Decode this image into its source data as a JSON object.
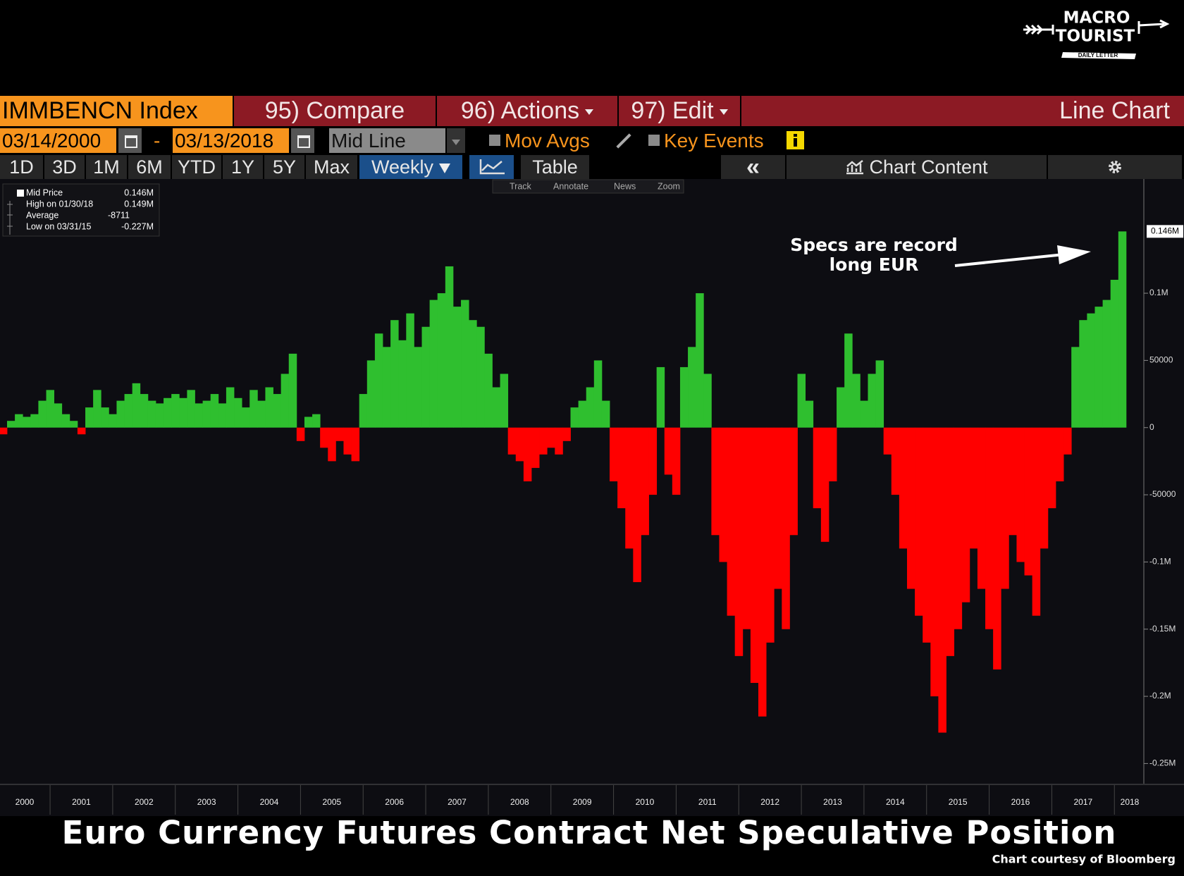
{
  "logo": [
    "MACRO",
    "TOURIST",
    "DAILY LETTER"
  ],
  "toolbar": {
    "security": "IMMBENCN Index",
    "compare": "95) Compare",
    "actions": "96) Actions",
    "edit": "97) Edit",
    "chart_type": "Line Chart",
    "start_date": "03/14/2000",
    "date_sep": "-",
    "end_date": "03/13/2018",
    "field": "Mid Line",
    "mov_avgs": "Mov Avgs",
    "key_events": "Key Events",
    "periods": [
      "1D",
      "3D",
      "1M",
      "6M",
      "YTD",
      "1Y",
      "5Y",
      "Max"
    ],
    "frequency": "Weekly",
    "table": "Table",
    "collapse": "«",
    "chart_content": "Chart Content",
    "tools": [
      "Track",
      "Annotate",
      "News",
      "Zoom"
    ]
  },
  "chart_data": {
    "type": "bar",
    "title": "Euro Currency Futures Contract Net Speculative Position",
    "source": "Chart courtesy of Bloomberg",
    "annotation": [
      "Specs are record",
      "long EUR"
    ],
    "legend": [
      [
        "Mid Price",
        "0.146M"
      ],
      [
        "High on 01/30/18",
        "0.149M"
      ],
      [
        "Average",
        "-8711"
      ],
      [
        "Low on 03/31/15",
        "-0.227M"
      ]
    ],
    "last_label": "0.146M",
    "positive_color": "#2fbf2f",
    "negative_color": "#ff0000",
    "xlim": [
      2000.2,
      2018.47
    ],
    "xticks": [
      2000,
      2001,
      2002,
      2003,
      2004,
      2005,
      2006,
      2007,
      2008,
      2009,
      2010,
      2011,
      2012,
      2013,
      2014,
      2015,
      2016,
      2017,
      2018
    ],
    "ylim": [
      -265000,
      185000
    ],
    "yticks": [
      {
        "value": -250000,
        "label": "-0.25M"
      },
      {
        "value": -200000,
        "label": "-0.2M"
      },
      {
        "value": -150000,
        "label": "-0.15M"
      },
      {
        "value": -100000,
        "label": "-0.1M"
      },
      -50000,
      0,
      50000,
      {
        "value": 100000,
        "label": "0.1M"
      }
    ],
    "x": [
      2000.25,
      2000.375,
      2000.5,
      2000.625,
      2000.75,
      2000.875,
      2001,
      2001.125,
      2001.25,
      2001.375,
      2001.5,
      2001.625,
      2001.75,
      2001.875,
      2002,
      2002.125,
      2002.25,
      2002.375,
      2002.5,
      2002.625,
      2002.75,
      2002.875,
      2003,
      2003.125,
      2003.25,
      2003.375,
      2003.5,
      2003.625,
      2003.75,
      2003.875,
      2004,
      2004.125,
      2004.25,
      2004.375,
      2004.5,
      2004.625,
      2004.75,
      2004.875,
      2005,
      2005.125,
      2005.25,
      2005.375,
      2005.5,
      2005.625,
      2005.75,
      2005.875,
      2006,
      2006.125,
      2006.25,
      2006.375,
      2006.5,
      2006.625,
      2006.75,
      2006.875,
      2007,
      2007.125,
      2007.25,
      2007.375,
      2007.5,
      2007.625,
      2007.75,
      2007.875,
      2008,
      2008.125,
      2008.25,
      2008.375,
      2008.5,
      2008.625,
      2008.75,
      2008.875,
      2009,
      2009.125,
      2009.25,
      2009.375,
      2009.5,
      2009.625,
      2009.75,
      2009.875,
      2010,
      2010.125,
      2010.25,
      2010.375,
      2010.5,
      2010.625,
      2010.75,
      2010.875,
      2011,
      2011.125,
      2011.25,
      2011.375,
      2011.5,
      2011.625,
      2011.75,
      2011.875,
      2012,
      2012.125,
      2012.25,
      2012.375,
      2012.5,
      2012.625,
      2012.75,
      2012.875,
      2013,
      2013.125,
      2013.25,
      2013.375,
      2013.5,
      2013.625,
      2013.75,
      2013.875,
      2014,
      2014.125,
      2014.25,
      2014.375,
      2014.5,
      2014.625,
      2014.75,
      2014.875,
      2015,
      2015.125,
      2015.25,
      2015.375,
      2015.5,
      2015.625,
      2015.75,
      2015.875,
      2016,
      2016.125,
      2016.25,
      2016.375,
      2016.5,
      2016.625,
      2016.75,
      2016.875,
      2017,
      2017.125,
      2017.25,
      2017.375,
      2017.5,
      2017.625,
      2017.75,
      2017.875,
      2018,
      2018.125
    ],
    "values": [
      -5000,
      5000,
      10000,
      8000,
      10000,
      20000,
      28000,
      18000,
      10000,
      5000,
      -5000,
      15000,
      28000,
      15000,
      10000,
      20000,
      25000,
      33000,
      25000,
      20000,
      18000,
      22000,
      25000,
      22000,
      28000,
      18000,
      20000,
      25000,
      18000,
      30000,
      22000,
      15000,
      28000,
      20000,
      30000,
      25000,
      40000,
      55000,
      -10000,
      8000,
      10000,
      -15000,
      -25000,
      -10000,
      -20000,
      -25000,
      25000,
      50000,
      70000,
      60000,
      80000,
      65000,
      85000,
      60000,
      75000,
      95000,
      100000,
      120000,
      90000,
      95000,
      80000,
      75000,
      55000,
      30000,
      40000,
      -20000,
      -25000,
      -40000,
      -30000,
      -20000,
      -15000,
      -20000,
      -10000,
      15000,
      20000,
      30000,
      50000,
      20000,
      -40000,
      -60000,
      -90000,
      -115000,
      -80000,
      -50000,
      45000,
      -35000,
      -50000,
      45000,
      60000,
      100000,
      40000,
      -80000,
      -100000,
      -140000,
      -170000,
      -150000,
      -190000,
      -215000,
      -160000,
      -120000,
      -150000,
      -80000,
      40000,
      20000,
      -60000,
      -85000,
      -40000,
      30000,
      70000,
      40000,
      20000,
      40000,
      50000,
      -20000,
      -50000,
      -90000,
      -120000,
      -140000,
      -160000,
      -200000,
      -227000,
      -170000,
      -150000,
      -130000,
      -90000,
      -120000,
      -150000,
      -180000,
      -120000,
      -80000,
      -100000,
      -110000,
      -140000,
      -90000,
      -60000,
      -40000,
      -20000,
      60000,
      80000,
      85000,
      90000,
      95000,
      110000,
      146000
    ]
  }
}
